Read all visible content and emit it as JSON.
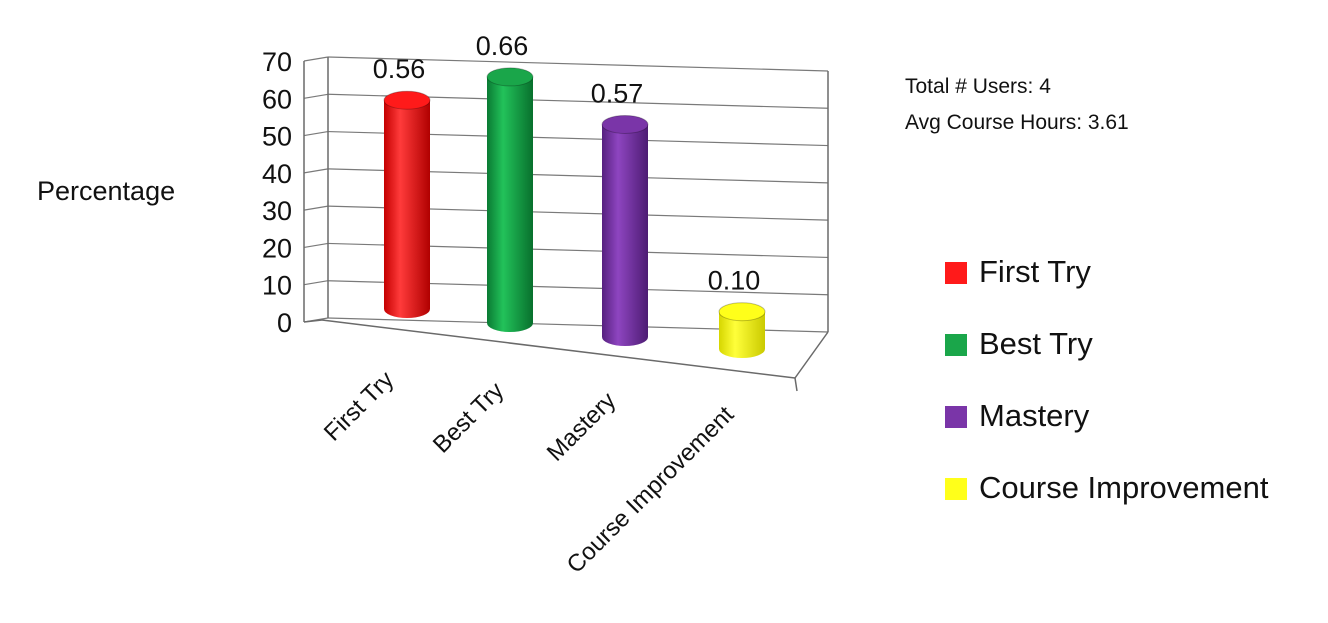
{
  "info": {
    "total_users": "Total # Users:  4",
    "avg_course_hours": "Avg Course Hours: 3.61"
  },
  "chart_data": {
    "type": "bar",
    "style": "3d-cylinder",
    "ylabel": "Percentage",
    "xlabel": "",
    "ylim": [
      0,
      70
    ],
    "yticks": [
      0,
      10,
      20,
      30,
      40,
      50,
      60,
      70
    ],
    "categories": [
      "First Try",
      "Best Try",
      "Mastery",
      "Course Improvement"
    ],
    "values": [
      56,
      66,
      57,
      10
    ],
    "data_labels": [
      "0.56",
      "0.66",
      "0.57",
      "0.10"
    ],
    "colors": [
      "#ff1a1a",
      "#1aa64a",
      "#7a35a8",
      "#ffff1a"
    ],
    "grid": true,
    "legend_position": "right",
    "legend": [
      "First Try",
      "Best Try",
      "Mastery",
      "Course Improvement"
    ]
  }
}
